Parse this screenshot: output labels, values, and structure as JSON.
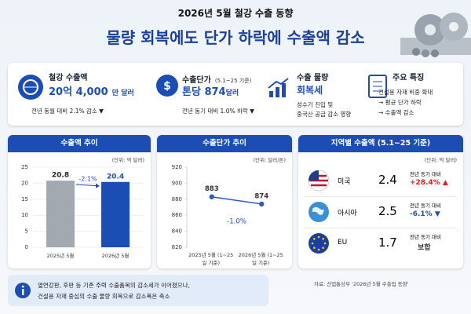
{
  "header": {
    "kicker": "2026년 5월 철강 수출 동향",
    "title": "물량 회복에도 단가 하락에 수출액 감소"
  },
  "cards": [
    {
      "title": "철강 수출액",
      "value_main": "20억 4,000",
      "value_unit": "만 달러",
      "note": "전년 동월 대비 2.1% 감소 ▼"
    },
    {
      "title": "수출단가",
      "title_note": "(5.1~25 기준)",
      "value_main": "톤당 874",
      "value_unit": "달러",
      "note": "전년 동기 대비 1.0% 하락 ▼"
    },
    {
      "title": "수출 물량",
      "value_main": "회복세",
      "lines": [
        "성수기 진입 및",
        "중국산 공급 감소 영향"
      ]
    },
    {
      "title": "주요 특징",
      "lines": [
        "건설용 자재 비중 확대",
        "→ 평균 단가 하락",
        "→ 수출액 감소"
      ]
    }
  ],
  "chart_data": [
    {
      "type": "bar",
      "title": "수출액 추이",
      "unit": "(단위: 억 달러)",
      "categories": [
        "2025년 5월",
        "2026년 5월"
      ],
      "values": [
        20.8,
        20.4
      ],
      "colors": [
        "#a3a9b1",
        "#1c4db5"
      ],
      "ylim": [
        0,
        25
      ],
      "yticks": [
        0,
        5,
        10,
        15,
        20,
        25
      ],
      "grid": true,
      "annotation": "-2.1%"
    },
    {
      "type": "line",
      "title": "수출단가 추이",
      "unit": "(단위: 달러/톤)",
      "categories": [
        "2025년 5월 (1~25일 기준)",
        "2026년 5월 (1~25일 기준)"
      ],
      "values": [
        883,
        874
      ],
      "color": "#2b5cc4",
      "ylim": [
        820,
        920
      ],
      "yticks": [
        820,
        840,
        860,
        880,
        900,
        920
      ],
      "grid": false,
      "annotation": "-1.0%"
    }
  ],
  "regions": {
    "title": "지역별 수출액 (5.1~25 기준)",
    "unit": "(단위: 억 달러)",
    "rows": [
      {
        "name": "미국",
        "value": "2.4",
        "label": "전년 동기 대비",
        "change": "+28.4% ▲"
      },
      {
        "name": "아시아",
        "value": "2.5",
        "label": "전년 동기 대비",
        "change": "-6.1% ▼"
      },
      {
        "name": "EU",
        "value": "1.7",
        "label": "전년 동기 대비",
        "change": "보합"
      }
    ]
  },
  "footer": {
    "lines": [
      "열연강판, 후판 등 기존 주력 수출품목의 감소세가 이어졌으나,",
      "건설용 자재 중심의 수출 물량 회복으로 감소폭은 축소"
    ],
    "source": "자료: 산업통상부 '2026년 5월 수출입 동향'"
  }
}
